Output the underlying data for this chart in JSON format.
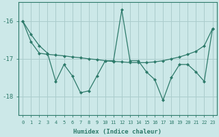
{
  "xlabel": "Humidex (Indice chaleur)",
  "ylabel": "",
  "background_color": "#cce8e8",
  "grid_color": "#aacccc",
  "line_color": "#2d7a6a",
  "xlim": [
    -0.5,
    23.5
  ],
  "ylim": [
    -18.5,
    -15.5
  ],
  "yticks": [
    -18,
    -17,
    -16
  ],
  "xticks": [
    0,
    1,
    2,
    3,
    4,
    5,
    6,
    7,
    8,
    9,
    10,
    11,
    12,
    13,
    14,
    15,
    16,
    17,
    18,
    19,
    20,
    21,
    22,
    23
  ],
  "series1_x": [
    0,
    1,
    2,
    3,
    4,
    5,
    6,
    7,
    8,
    9,
    10,
    11,
    12,
    13,
    14,
    15,
    16,
    17,
    18,
    19,
    20,
    21,
    22,
    23
  ],
  "series1_y": [
    -16.0,
    -16.35,
    -16.65,
    -16.85,
    -17.6,
    -17.15,
    -17.45,
    -17.9,
    -17.85,
    -17.45,
    -17.05,
    -17.05,
    -15.7,
    -17.05,
    -17.05,
    -17.35,
    -17.55,
    -18.1,
    -17.5,
    -17.15,
    -17.15,
    -17.35,
    -17.6,
    -16.2
  ],
  "series2_x": [
    0,
    1,
    2,
    3,
    4,
    5,
    6,
    7,
    8,
    9,
    10,
    11,
    12,
    13,
    14,
    15,
    16,
    17,
    18,
    19,
    20,
    21,
    22,
    23
  ],
  "series2_y": [
    -16.0,
    -16.55,
    -16.85,
    -16.88,
    -16.9,
    -16.92,
    -16.95,
    -16.97,
    -17.0,
    -17.02,
    -17.05,
    -17.07,
    -17.08,
    -17.1,
    -17.1,
    -17.1,
    -17.08,
    -17.05,
    -17.0,
    -16.95,
    -16.88,
    -16.8,
    -16.65,
    -16.2
  ]
}
